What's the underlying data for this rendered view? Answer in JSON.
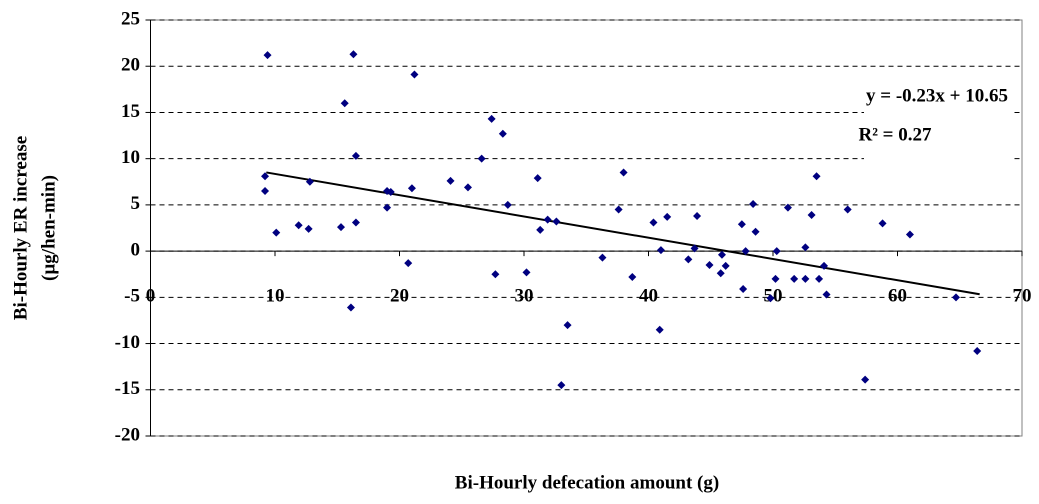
{
  "chart_data": {
    "type": "scatter",
    "x_label": "Bi-Hourly defecation amount (g)",
    "y_label": [
      "Bi-Hourly ER increase",
      "(µg/hen-min)"
    ],
    "annotations": [
      "y = -0.23x + 10.65",
      "R² = 0.27"
    ],
    "xlim": [
      0,
      70
    ],
    "xticks": [
      0,
      10,
      20,
      30,
      40,
      50,
      60,
      70
    ],
    "ylim": [
      -20,
      25
    ],
    "yticks": [
      -20,
      -15,
      -10,
      -5,
      0,
      5,
      10,
      15,
      20,
      25
    ],
    "grid": true,
    "series": [
      {
        "color": "#000080",
        "x": [
          9.4,
          16.3,
          21.2,
          15.6,
          27.4,
          28.3,
          16.5,
          26.6,
          9.2,
          12.8,
          9.2,
          24.1,
          25.5,
          21.0,
          19.0,
          19.3,
          19.0,
          31.1,
          28.7,
          16.5,
          10.1,
          11.9,
          12.7,
          15.3,
          31.9,
          32.6,
          31.3,
          38.0,
          37.6,
          40.4,
          41.5,
          43.9,
          47.5,
          48.4,
          48.6,
          51.2,
          53.1,
          53.5,
          56.0,
          58.8,
          61.0,
          52.6,
          43.7,
          41.0,
          47.8,
          50.3,
          20.7,
          27.7,
          30.2,
          36.3,
          38.7,
          43.2,
          44.9,
          45.9,
          46.2,
          45.8,
          47.6,
          49.8,
          50.2,
          51.7,
          52.6,
          53.7,
          54.1,
          54.3,
          64.7,
          16.1,
          33.5,
          40.9,
          33.0,
          57.4,
          66.4
        ],
        "values": [
          21.2,
          21.3,
          19.1,
          16.0,
          14.3,
          12.7,
          10.3,
          10.0,
          8.1,
          7.5,
          6.5,
          7.6,
          6.9,
          6.8,
          6.5,
          6.4,
          4.7,
          7.9,
          5.0,
          3.1,
          2.0,
          2.8,
          2.4,
          2.6,
          3.4,
          3.2,
          2.3,
          8.5,
          4.5,
          3.1,
          3.7,
          3.8,
          2.9,
          5.1,
          2.1,
          4.7,
          3.9,
          8.1,
          4.5,
          3.0,
          1.8,
          0.4,
          0.3,
          0.1,
          0.0,
          0.0,
          -1.3,
          -2.5,
          -2.3,
          -0.7,
          -2.8,
          -0.9,
          -1.5,
          -0.4,
          -1.6,
          -2.4,
          -4.1,
          -5.1,
          -3.0,
          -3.0,
          -3.0,
          -3.0,
          -1.6,
          -4.7,
          -5.0,
          -6.1,
          -8.0,
          -8.5,
          -14.5,
          -13.9,
          -10.8
        ]
      }
    ],
    "trendline": {
      "color": "#000000",
      "x": [
        9.3,
        66.6
      ],
      "values": [
        8.51,
        -4.67
      ]
    }
  }
}
